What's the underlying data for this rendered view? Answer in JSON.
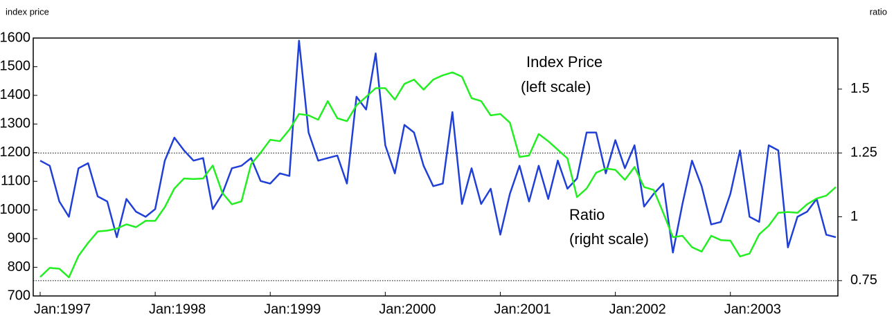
{
  "chart_data": {
    "type": "line",
    "y_label": "index price",
    "y2_label": "ratio",
    "categories": [
      "Jan:1997",
      null,
      null,
      null,
      null,
      null,
      null,
      null,
      null,
      null,
      null,
      null,
      "Jan:1998",
      null,
      null,
      null,
      null,
      null,
      null,
      null,
      null,
      null,
      null,
      null,
      "Jan:1999",
      null,
      null,
      null,
      null,
      null,
      null,
      null,
      null,
      null,
      null,
      null,
      "Jan:2000",
      null,
      null,
      null,
      null,
      null,
      null,
      null,
      null,
      null,
      null,
      null,
      "Jan:2001",
      null,
      null,
      null,
      null,
      null,
      null,
      null,
      null,
      null,
      null,
      null,
      "Jan:2002",
      null,
      null,
      null,
      null,
      null,
      null,
      null,
      null,
      null,
      null,
      null,
      "Jan:2003",
      null,
      null,
      null,
      null,
      null,
      null,
      null,
      null,
      null,
      null,
      null
    ],
    "series": [
      {
        "name": "Index Price",
        "color": "#22ee22",
        "axis": "y",
        "values": [
          766,
          798,
          795,
          765,
          840,
          885,
          925,
          928,
          935,
          950,
          940,
          962,
          962,
          1010,
          1075,
          1110,
          1108,
          1110,
          1155,
          1060,
          1020,
          1030,
          1160,
          1200,
          1245,
          1240,
          1280,
          1335,
          1330,
          1315,
          1380,
          1320,
          1310,
          1365,
          1395,
          1425,
          1425,
          1385,
          1440,
          1455,
          1420,
          1455,
          1470,
          1480,
          1465,
          1390,
          1380,
          1330,
          1335,
          1305,
          1185,
          1190,
          1265,
          1240,
          1210,
          1180,
          1045,
          1075,
          1130,
          1145,
          1140,
          1105,
          1150,
          1080,
          1070,
          990,
          905,
          910,
          870,
          855,
          910,
          895,
          893,
          838,
          848,
          915,
          945,
          990,
          993,
          990,
          1020,
          1040,
          1050,
          1080
        ]
      },
      {
        "name": "Ratio",
        "color": "#1f3fd6",
        "axis": "y2",
        "values": [
          1.22,
          1.2,
          1.06,
          1.0,
          1.19,
          1.21,
          1.08,
          1.06,
          0.92,
          1.07,
          1.02,
          1.0,
          1.03,
          1.22,
          1.31,
          1.26,
          1.22,
          1.23,
          1.03,
          1.09,
          1.19,
          1.2,
          1.23,
          1.14,
          1.13,
          1.17,
          1.16,
          1.69,
          1.33,
          1.22,
          1.23,
          1.24,
          1.13,
          1.47,
          1.42,
          1.64,
          1.28,
          1.17,
          1.36,
          1.33,
          1.2,
          1.12,
          1.13,
          1.41,
          1.05,
          1.19,
          1.05,
          1.11,
          0.93,
          1.09,
          1.2,
          1.06,
          1.2,
          1.07,
          1.22,
          1.11,
          1.15,
          1.33,
          1.33,
          1.17,
          1.3,
          1.19,
          1.28,
          1.04,
          1.09,
          1.13,
          0.86,
          1.05,
          1.22,
          1.12,
          0.97,
          0.98,
          1.09,
          1.26,
          1.0,
          0.98,
          1.28,
          1.26,
          0.88,
          1.0,
          1.02,
          1.07,
          0.93,
          0.92
        ]
      }
    ],
    "ylim": [
      700,
      1600
    ],
    "yticks": [
      700,
      800,
      900,
      1000,
      1100,
      1200,
      1300,
      1400,
      1500,
      1600
    ],
    "y2lim": [
      0.69,
      1.7
    ],
    "y2ticks": [
      0.75,
      1,
      1.25,
      1.5
    ],
    "reference_lines": [
      {
        "value": 1.25,
        "axis": "y2"
      },
      {
        "value": 0.75,
        "axis": "y2"
      }
    ],
    "annotations": [
      {
        "text": "Index Price",
        "series": 0
      },
      {
        "text": "(left scale)",
        "series": 0
      },
      {
        "text": "Ratio",
        "series": 1
      },
      {
        "text": "(right scale)",
        "series": 1
      }
    ]
  }
}
